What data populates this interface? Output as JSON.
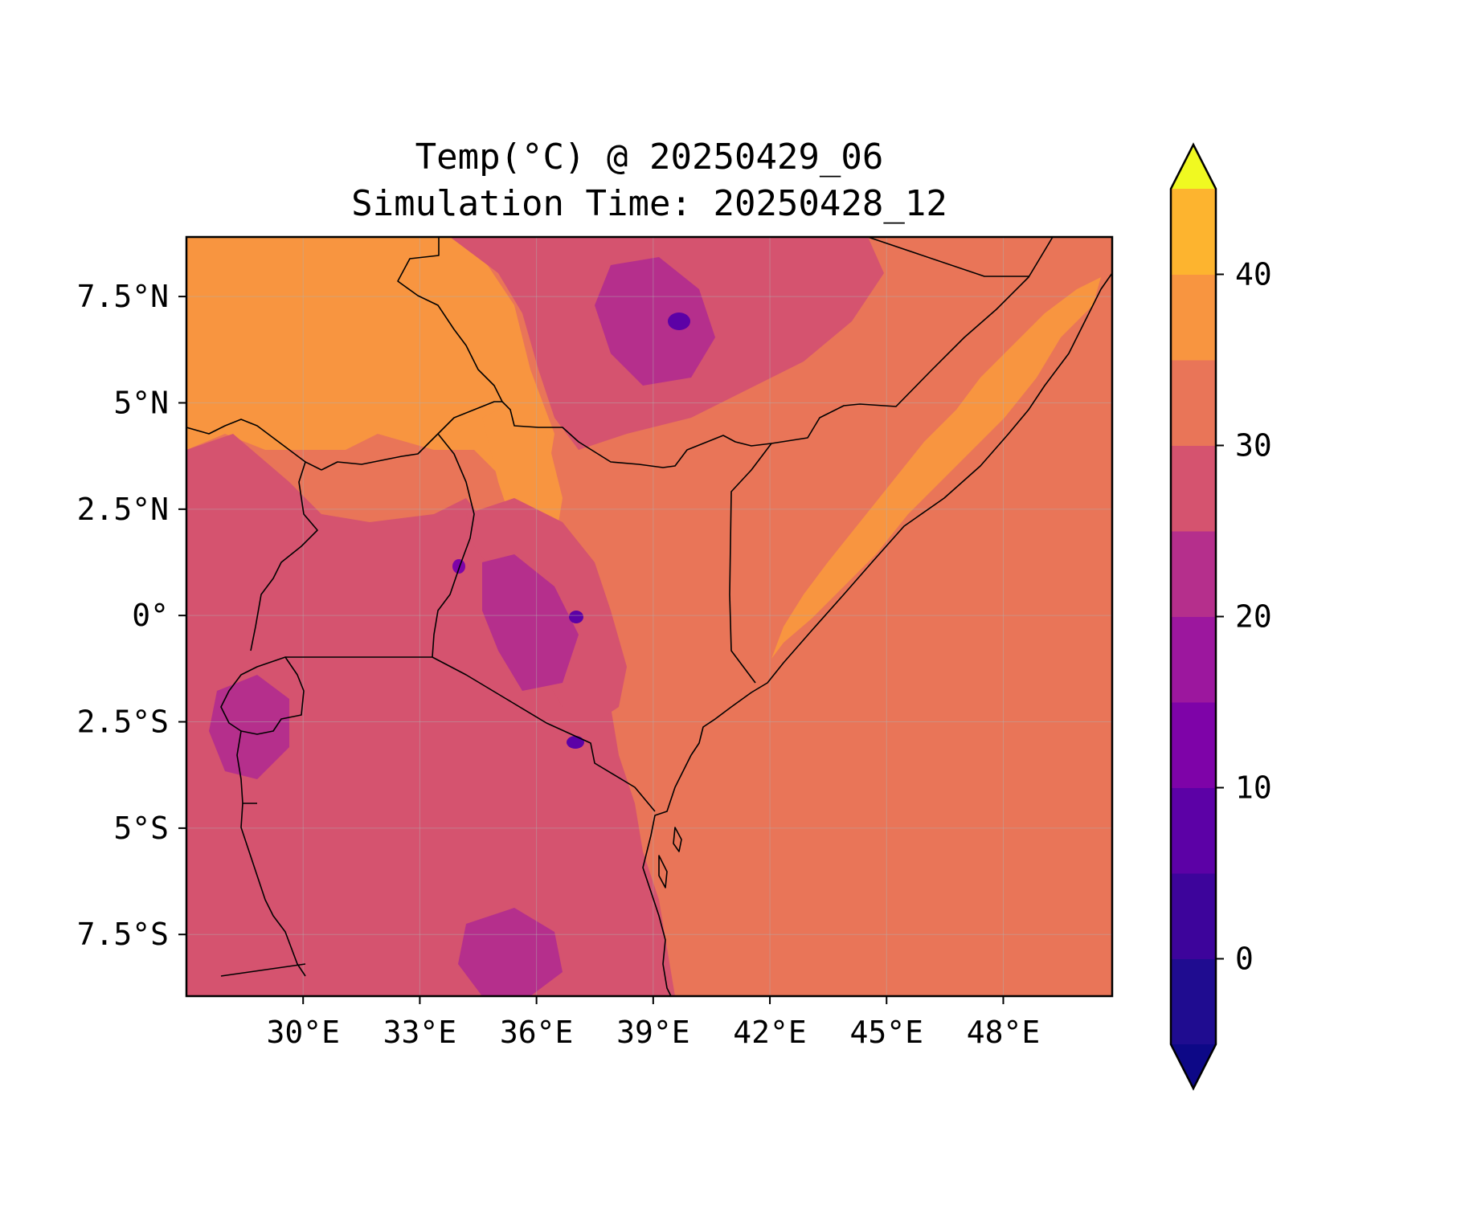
{
  "title": {
    "line1": "Temp(°C) @ 20250429_06",
    "line2": "Simulation Time: 20250428_12"
  },
  "map": {
    "lon_range": [
      27.0,
      50.8
    ],
    "lat_range": [
      -8.95,
      8.9
    ],
    "lon_ticks": [
      {
        "value": 30,
        "label": "30°E"
      },
      {
        "value": 33,
        "label": "33°E"
      },
      {
        "value": 36,
        "label": "36°E"
      },
      {
        "value": 39,
        "label": "39°E"
      },
      {
        "value": 42,
        "label": "42°E"
      },
      {
        "value": 45,
        "label": "45°E"
      },
      {
        "value": 48,
        "label": "48°E"
      }
    ],
    "lat_ticks": [
      {
        "value": 7.5,
        "label": "7.5°N"
      },
      {
        "value": 5,
        "label": "5°N"
      },
      {
        "value": 2.5,
        "label": "2.5°N"
      },
      {
        "value": 0,
        "label": "0°"
      },
      {
        "value": -2.5,
        "label": "2.5°S"
      },
      {
        "value": -5,
        "label": "5°S"
      },
      {
        "value": -7.5,
        "label": "7.5°S"
      }
    ],
    "gridlines": true,
    "background_color": "#e97558",
    "borders_color": "#000000"
  },
  "colorbar": {
    "colormap": "plasma",
    "extend": "both",
    "levels": [
      -5,
      0,
      5,
      10,
      15,
      20,
      25,
      30,
      35,
      40,
      45
    ],
    "colors": [
      "#1f0c90",
      "#3d049b",
      "#5c01a6",
      "#7e03a8",
      "#9c179e",
      "#b52f8c",
      "#d5536f",
      "#e97558",
      "#f89540",
      "#fdb42f",
      "#f0f921"
    ],
    "under_color": "#0d0887",
    "over_color": "#f0f921",
    "ticks": [
      {
        "value": 0,
        "label": "0"
      },
      {
        "value": 10,
        "label": "10"
      },
      {
        "value": 20,
        "label": "20"
      },
      {
        "value": 30,
        "label": "30"
      },
      {
        "value": 40,
        "label": "40"
      }
    ]
  }
}
